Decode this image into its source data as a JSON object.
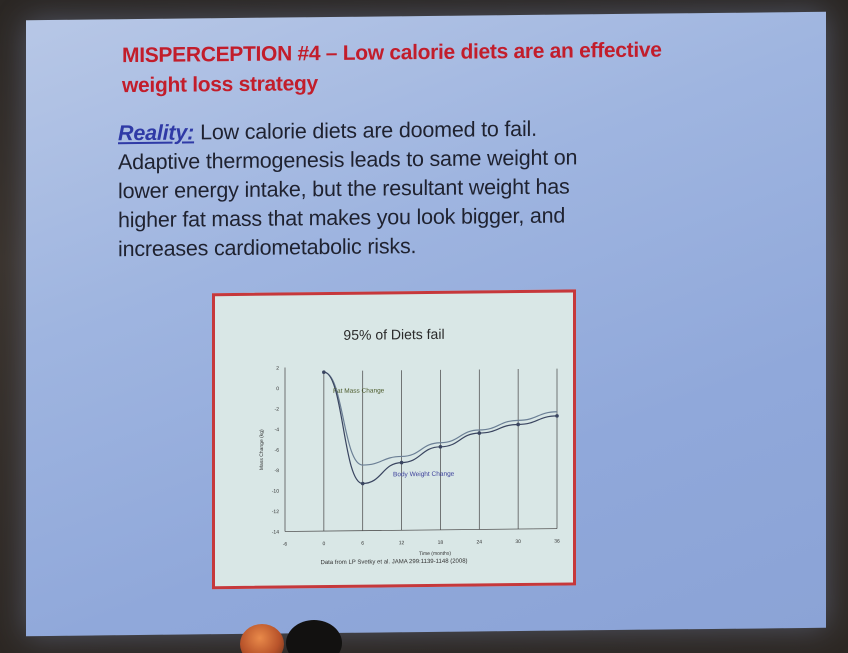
{
  "slide": {
    "title_line1": "MISPERCEPTION #4 – Low calorie diets are an effective",
    "title_line2": "weight loss strategy",
    "reality_label": "Reality:",
    "body_line1": "Low calorie diets are doomed to fail.",
    "body_line2": "Adaptive thermogenesis leads to same weight on",
    "body_line3": "lower energy intake, but the resultant weight has",
    "body_line4": "higher fat mass that makes you look bigger, and",
    "body_line5": "increases cardiometabolic risks."
  },
  "figure": {
    "title": "95% of Diets fail",
    "source": "Data from LP Svetky et al. JAMA 299:1139-1148 (2008)",
    "border_color": "#c6383b"
  },
  "chart_data": {
    "type": "line",
    "x": [
      -6,
      0,
      6,
      12,
      18,
      24,
      30,
      36
    ],
    "xlabel": "Time (months)",
    "ylabel": "Mass Change (kg)",
    "xticks": [
      -6,
      0,
      6,
      12,
      18,
      24,
      30,
      36
    ],
    "yticks": [
      2,
      0,
      -2,
      -4,
      -6,
      -8,
      -10,
      -12,
      -14
    ],
    "xlim": [
      -6,
      36
    ],
    "ylim": [
      -14,
      2
    ],
    "series": [
      {
        "name": "Fat Mass Change",
        "x": [
          0,
          6,
          12,
          18,
          24,
          30,
          36
        ],
        "values": [
          1.5,
          -7.6,
          -6.8,
          -5.5,
          -4.3,
          -3.4,
          -2.6
        ],
        "color": "#6b7f95"
      },
      {
        "name": "Body Weight Change",
        "x": [
          0,
          6,
          12,
          18,
          24,
          30,
          36
        ],
        "values": [
          1.5,
          -9.4,
          -7.4,
          -5.9,
          -4.6,
          -3.8,
          -3.0
        ],
        "color": "#3a4560"
      }
    ]
  }
}
